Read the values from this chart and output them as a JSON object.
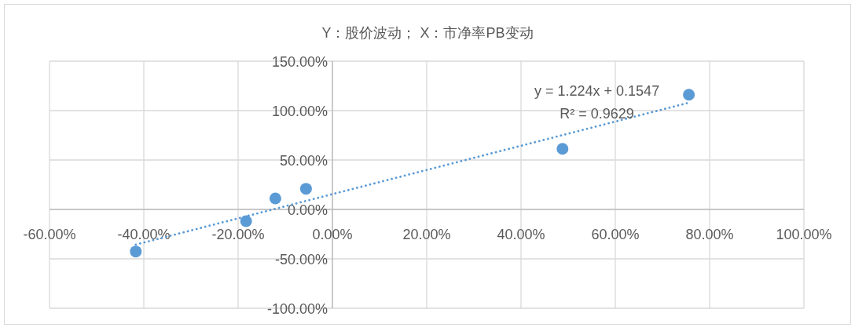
{
  "chart_data": {
    "type": "scatter",
    "title": "Y：股价波动； X：市净率PB变动",
    "xlim": [
      -60,
      100
    ],
    "ylim": [
      -100,
      150
    ],
    "xticks": [
      {
        "value": -60,
        "label": "-60.00%"
      },
      {
        "value": -40,
        "label": "-40.00%"
      },
      {
        "value": -20,
        "label": "-20.00%"
      },
      {
        "value": 0,
        "label": "0.00%"
      },
      {
        "value": 20,
        "label": "20.00%"
      },
      {
        "value": 40,
        "label": "40.00%"
      },
      {
        "value": 60,
        "label": "60.00%"
      },
      {
        "value": 80,
        "label": "80.00%"
      },
      {
        "value": 100,
        "label": "100.00%"
      }
    ],
    "yticks": [
      {
        "value": -100,
        "label": "-100.00%"
      },
      {
        "value": -50,
        "label": "-50.00%"
      },
      {
        "value": 0,
        "label": "0.00%"
      },
      {
        "value": 50,
        "label": "50.00%"
      },
      {
        "value": 100,
        "label": "100.00%"
      },
      {
        "value": 150,
        "label": "150.00%"
      }
    ],
    "grid": true,
    "marker": "circle",
    "series": [
      {
        "color": "#5b9bd5",
        "x": [
          -41.7,
          -18.3,
          -12.1,
          -5.6,
          48.8,
          75.6
        ],
        "values": [
          -42.6,
          -11.9,
          11.1,
          20.9,
          61.3,
          116.1
        ]
      },
      {
        "type": "line",
        "color": "#5b9bd5",
        "line_style": "dotted",
        "marker": "none",
        "x": [
          -41.7,
          75.6
        ],
        "values": [
          -35.6,
          108.0
        ]
      }
    ],
    "annotations": [
      "y = 1.224x + 0.1547",
      "R² = 0.9629"
    ]
  }
}
